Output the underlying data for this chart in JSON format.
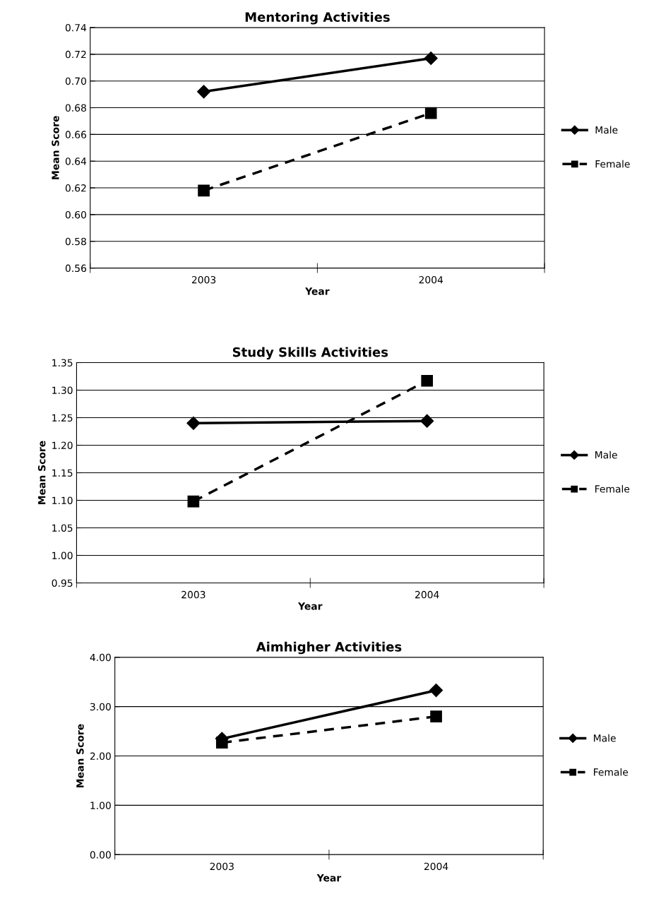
{
  "chart_data": [
    {
      "type": "line",
      "title": "Mentoring Activities",
      "xlabel": "Year",
      "ylabel": "Mean Score",
      "categories": [
        "2003",
        "2004"
      ],
      "series": [
        {
          "name": "Male",
          "color": "#000000",
          "values": [
            0.692,
            0.717
          ],
          "marker": "diamond",
          "line_style": "solid"
        },
        {
          "name": "Female",
          "color": "#000000",
          "values": [
            0.618,
            0.676
          ],
          "marker": "square",
          "line_style": "dashed"
        }
      ],
      "ylim": [
        0.56,
        0.74
      ],
      "yticks": [
        {
          "value": 0.56,
          "label": "0.56"
        },
        {
          "value": 0.58,
          "label": "0.58"
        },
        {
          "value": 0.6,
          "label": "0.60"
        },
        {
          "value": 0.62,
          "label": "0.62"
        },
        {
          "value": 0.64,
          "label": "0.64"
        },
        {
          "value": 0.66,
          "label": "0.66"
        },
        {
          "value": 0.68,
          "label": "0.68"
        },
        {
          "value": 0.7,
          "label": "0.70"
        },
        {
          "value": 0.72,
          "label": "0.72"
        },
        {
          "value": 0.74,
          "label": "0.74"
        }
      ],
      "grid": "y",
      "legend": "right"
    },
    {
      "type": "line",
      "title": "Study Skills Activities",
      "xlabel": "Year",
      "ylabel": "Mean Score",
      "categories": [
        "2003",
        "2004"
      ],
      "series": [
        {
          "name": "Male",
          "color": "#000000",
          "values": [
            1.24,
            1.244
          ],
          "marker": "diamond",
          "line_style": "solid"
        },
        {
          "name": "Female",
          "color": "#000000",
          "values": [
            1.098,
            1.317
          ],
          "marker": "square",
          "line_style": "dashed"
        }
      ],
      "ylim": [
        0.95,
        1.35
      ],
      "yticks": [
        {
          "value": 0.95,
          "label": "0.95"
        },
        {
          "value": 1.0,
          "label": "1.00"
        },
        {
          "value": 1.05,
          "label": "1.05"
        },
        {
          "value": 1.1,
          "label": "1.10"
        },
        {
          "value": 1.15,
          "label": "1.15"
        },
        {
          "value": 1.2,
          "label": "1.20"
        },
        {
          "value": 1.25,
          "label": "1.25"
        },
        {
          "value": 1.3,
          "label": "1.30"
        },
        {
          "value": 1.35,
          "label": "1.35"
        }
      ],
      "grid": "y",
      "legend": "right"
    },
    {
      "type": "line",
      "title": "Aimhigher Activities",
      "xlabel": "Year",
      "ylabel": "Mean Score",
      "categories": [
        "2003",
        "2004"
      ],
      "series": [
        {
          "name": "Male",
          "color": "#000000",
          "values": [
            2.35,
            3.33
          ],
          "marker": "diamond",
          "line_style": "solid"
        },
        {
          "name": "Female",
          "color": "#000000",
          "values": [
            2.27,
            2.8
          ],
          "marker": "square",
          "line_style": "dashed"
        }
      ],
      "ylim": [
        0.0,
        4.0
      ],
      "yticks": [
        {
          "value": 0.0,
          "label": "0.00"
        },
        {
          "value": 1.0,
          "label": "1.00"
        },
        {
          "value": 2.0,
          "label": "2.00"
        },
        {
          "value": 3.0,
          "label": "3.00"
        },
        {
          "value": 4.0,
          "label": "4.00"
        }
      ],
      "grid": "y",
      "legend": "right"
    }
  ]
}
